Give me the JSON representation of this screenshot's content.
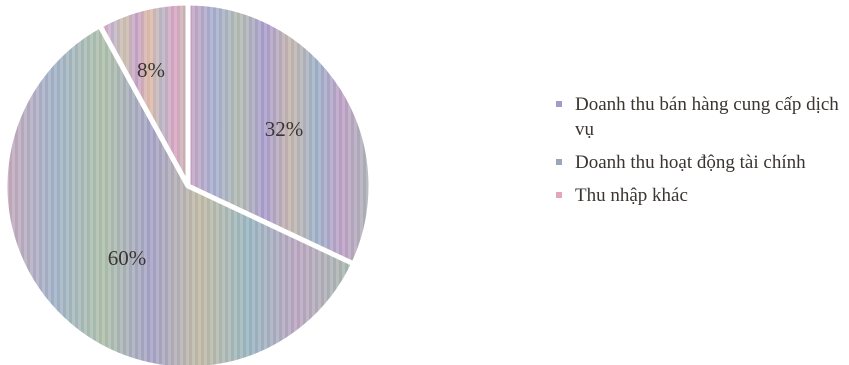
{
  "chart_data": {
    "type": "pie",
    "slices": [
      {
        "label": "Doanh thu bán hàng cung cấp dịch vụ",
        "value": 32,
        "value_label": "32%",
        "color": "#a59bc8"
      },
      {
        "label": "Doanh thu hoạt động tài chính",
        "value": 60,
        "value_label": "60%",
        "color": "#9ba6b8"
      },
      {
        "label": "Thu nhập khác",
        "value": 8,
        "value_label": "8%",
        "color": "#e3a6be"
      }
    ],
    "legend_position": "right",
    "start_angle_deg": 0,
    "direction": "clockwise"
  }
}
